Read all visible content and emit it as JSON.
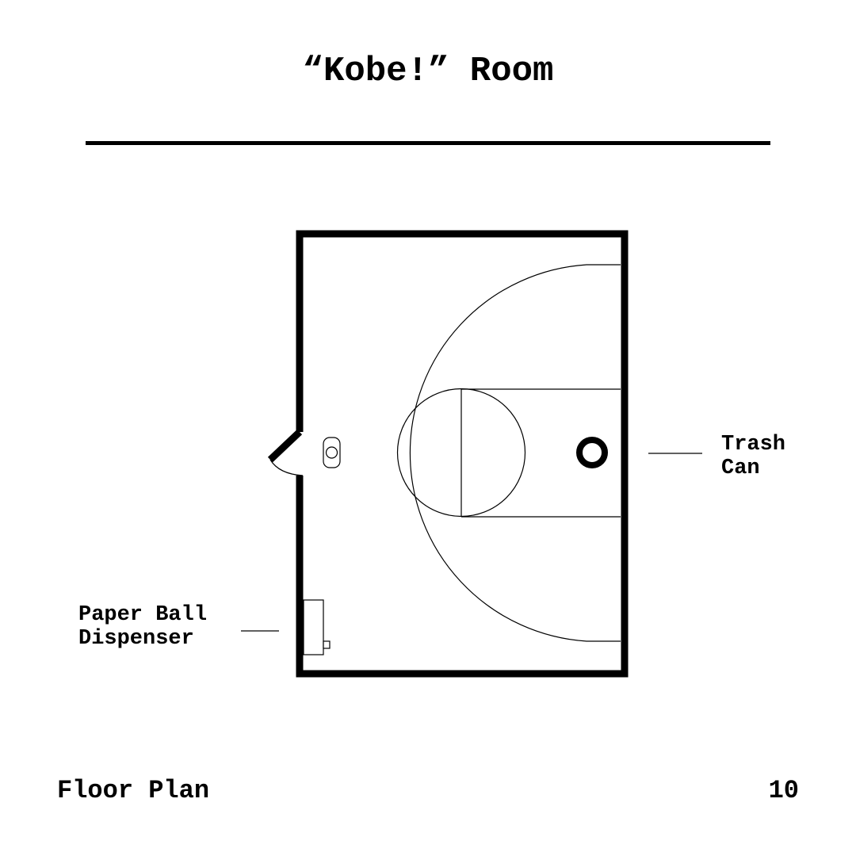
{
  "title": "“Kobe!” Room",
  "labels": {
    "trash_can": "Trash\nCan",
    "paper_ball_dispenser": "Paper Ball\nDispenser"
  },
  "footer": {
    "section": "Floor Plan",
    "page_number": "10"
  },
  "colors": {
    "ink": "#000000",
    "background": "#ffffff"
  }
}
